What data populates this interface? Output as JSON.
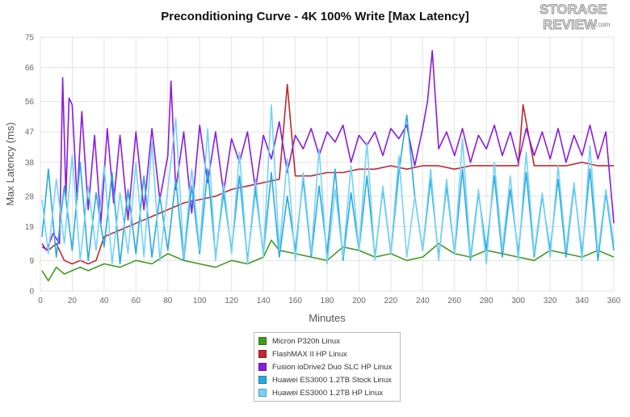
{
  "logo": {
    "line1": "STORAGE",
    "line2": "REVIEW",
    "suffix": ".com"
  },
  "chart_data": {
    "type": "line",
    "title": "Preconditioning Curve - 4K 100% Write [Max Latency]",
    "xlabel": "Minutes",
    "ylabel": "Max Latency (ms)",
    "xlim": [
      0,
      360
    ],
    "ylim": [
      0,
      75
    ],
    "x_ticks": [
      0,
      20,
      40,
      60,
      80,
      100,
      120,
      140,
      160,
      180,
      200,
      220,
      240,
      260,
      280,
      300,
      320,
      340,
      360
    ],
    "y_ticks": [
      0,
      9,
      19,
      28,
      38,
      47,
      56,
      66,
      75
    ],
    "grid": true,
    "legend_position": "bottom",
    "series": [
      {
        "name": "Micron P320h Linux",
        "color": "#3e9b1e",
        "x": [
          1,
          5,
          10,
          15,
          20,
          25,
          30,
          40,
          50,
          60,
          70,
          80,
          90,
          100,
          110,
          120,
          130,
          140,
          145,
          150,
          160,
          170,
          180,
          190,
          200,
          210,
          220,
          230,
          240,
          250,
          260,
          270,
          280,
          290,
          300,
          310,
          320,
          330,
          340,
          350,
          360
        ],
        "values": [
          6,
          3,
          7,
          5,
          6,
          7,
          6,
          8,
          7,
          9,
          8,
          11,
          9,
          8,
          7,
          9,
          8,
          10,
          15,
          12,
          11,
          10,
          9,
          13,
          12,
          10,
          11,
          9,
          10,
          14,
          11,
          10,
          12,
          11,
          10,
          9,
          12,
          11,
          10,
          12,
          10
        ]
      },
      {
        "name": "FlashMAX II HP Linux",
        "color": "#c1272d",
        "x": [
          1,
          5,
          10,
          15,
          20,
          25,
          30,
          35,
          40,
          50,
          60,
          70,
          80,
          90,
          100,
          110,
          120,
          130,
          140,
          150,
          155,
          160,
          170,
          180,
          190,
          200,
          210,
          220,
          230,
          240,
          250,
          260,
          270,
          280,
          290,
          300,
          303,
          310,
          320,
          330,
          340,
          350,
          360
        ],
        "values": [
          13,
          12,
          14,
          9,
          8,
          9,
          8,
          9,
          16,
          18,
          20,
          22,
          24,
          26,
          27,
          28,
          30,
          31,
          32,
          33,
          61,
          34,
          34,
          35,
          35,
          36,
          36,
          37,
          36,
          37,
          37,
          36,
          37,
          37,
          37,
          37,
          55,
          37,
          37,
          37,
          38,
          37,
          37
        ]
      },
      {
        "name": "Fusion ioDrive2 Duo SLC HP Linux",
        "color": "#8a1be0",
        "x": [
          1,
          4,
          8,
          12,
          14,
          16,
          18,
          20,
          23,
          26,
          30,
          34,
          38,
          42,
          46,
          50,
          55,
          60,
          65,
          70,
          75,
          80,
          82,
          85,
          90,
          95,
          100,
          105,
          110,
          115,
          120,
          125,
          130,
          135,
          140,
          145,
          150,
          155,
          160,
          165,
          170,
          175,
          180,
          185,
          190,
          195,
          200,
          205,
          210,
          215,
          220,
          225,
          230,
          235,
          240,
          243,
          246,
          250,
          255,
          260,
          265,
          270,
          275,
          280,
          285,
          290,
          295,
          300,
          305,
          310,
          315,
          320,
          325,
          330,
          335,
          340,
          345,
          350,
          355,
          360
        ],
        "values": [
          14,
          12,
          17,
          14,
          63,
          28,
          57,
          55,
          27,
          53,
          24,
          46,
          20,
          48,
          26,
          46,
          21,
          47,
          24,
          48,
          27,
          40,
          62,
          30,
          47,
          23,
          49,
          32,
          47,
          29,
          45,
          38,
          47,
          30,
          46,
          39,
          50,
          35,
          46,
          42,
          48,
          40,
          47,
          44,
          49,
          38,
          46,
          43,
          47,
          40,
          48,
          45,
          49,
          37,
          48,
          56,
          71,
          42,
          47,
          40,
          48,
          38,
          46,
          42,
          49,
          40,
          47,
          38,
          48,
          40,
          47,
          39,
          48,
          38,
          46,
          40,
          49,
          39,
          47,
          20
        ]
      },
      {
        "name": "Huawei ES3000 1.2TB Stock Linux",
        "color": "#29a9e1",
        "x": [
          1,
          5,
          10,
          15,
          20,
          25,
          30,
          35,
          40,
          45,
          50,
          55,
          60,
          65,
          70,
          75,
          80,
          85,
          90,
          95,
          100,
          105,
          110,
          115,
          120,
          125,
          130,
          135,
          140,
          145,
          150,
          155,
          160,
          165,
          170,
          175,
          180,
          185,
          190,
          195,
          200,
          205,
          210,
          215,
          220,
          225,
          230,
          235,
          240,
          245,
          250,
          255,
          260,
          265,
          270,
          275,
          280,
          285,
          290,
          295,
          300,
          305,
          310,
          315,
          320,
          325,
          330,
          335,
          340,
          345,
          350,
          355,
          360
        ],
        "values": [
          16,
          36,
          10,
          31,
          12,
          38,
          9,
          29,
          13,
          35,
          8,
          30,
          11,
          34,
          10,
          28,
          12,
          33,
          9,
          31,
          11,
          36,
          10,
          29,
          12,
          34,
          9,
          30,
          11,
          35,
          10,
          28,
          12,
          33,
          10,
          31,
          11,
          36,
          9,
          29,
          12,
          34,
          10,
          30,
          11,
          35,
          52,
          28,
          12,
          33,
          10,
          31,
          11,
          36,
          9,
          29,
          12,
          34,
          10,
          30,
          11,
          35,
          10,
          28,
          12,
          33,
          10,
          31,
          11,
          36,
          9,
          29,
          12
        ]
      },
      {
        "name": "Huawei ES3000 1.2TB HP Linux",
        "color": "#74d3f7",
        "x": [
          1,
          5,
          10,
          15,
          20,
          25,
          30,
          35,
          40,
          45,
          50,
          55,
          60,
          65,
          70,
          75,
          80,
          85,
          90,
          95,
          100,
          105,
          110,
          115,
          120,
          125,
          130,
          135,
          140,
          145,
          150,
          155,
          160,
          165,
          170,
          175,
          180,
          185,
          190,
          195,
          200,
          205,
          210,
          215,
          220,
          225,
          230,
          235,
          240,
          245,
          250,
          255,
          260,
          265,
          270,
          275,
          280,
          285,
          290,
          295,
          300,
          305,
          310,
          315,
          320,
          325,
          330,
          335,
          340,
          345,
          350,
          355,
          360
        ],
        "values": [
          27,
          11,
          33,
          14,
          40,
          9,
          31,
          12,
          37,
          8,
          29,
          11,
          38,
          10,
          44,
          9,
          30,
          51,
          10,
          36,
          12,
          48,
          9,
          32,
          11,
          41,
          8,
          33,
          10,
          55,
          12,
          39,
          9,
          35,
          11,
          42,
          8,
          30,
          10,
          37,
          12,
          44,
          9,
          31,
          11,
          40,
          10,
          28,
          12,
          36,
          9,
          33,
          11,
          45,
          10,
          30,
          8,
          38,
          12,
          34,
          9,
          41,
          11,
          29,
          10,
          37,
          12,
          32,
          9,
          43,
          11,
          30,
          14
        ]
      }
    ]
  }
}
